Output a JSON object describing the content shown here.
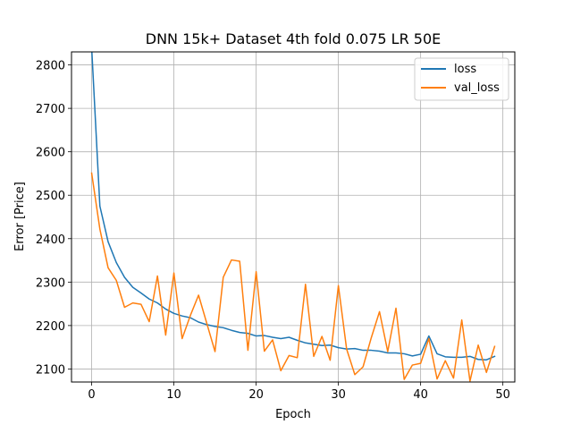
{
  "chart_data": {
    "type": "line",
    "title": "DNN 15k+ Dataset 4th fold 0.075 LR 50E",
    "xlabel": "Epoch",
    "ylabel": "Error [Price]",
    "xlim": [
      -2.45,
      51.45
    ],
    "ylim": [
      2070,
      2830
    ],
    "xticks": [
      0,
      10,
      20,
      30,
      40,
      50
    ],
    "yticks": [
      2100,
      2200,
      2300,
      2400,
      2500,
      2600,
      2700,
      2800
    ],
    "grid": true,
    "legend_position": "top-right",
    "x": [
      0,
      1,
      2,
      3,
      4,
      5,
      6,
      7,
      8,
      9,
      10,
      11,
      12,
      13,
      14,
      15,
      16,
      17,
      18,
      19,
      20,
      21,
      22,
      23,
      24,
      25,
      26,
      27,
      28,
      29,
      30,
      31,
      32,
      33,
      34,
      35,
      36,
      37,
      38,
      39,
      40,
      41,
      42,
      43,
      44,
      45,
      46,
      47,
      48,
      49
    ],
    "series": [
      {
        "name": "loss",
        "color": "#1f77b4",
        "values": [
          2840,
          2475,
          2393,
          2345,
          2311,
          2288,
          2275,
          2261,
          2252,
          2238,
          2228,
          2222,
          2218,
          2208,
          2202,
          2198,
          2195,
          2189,
          2184,
          2182,
          2176,
          2177,
          2173,
          2170,
          2173,
          2166,
          2160,
          2157,
          2154,
          2155,
          2149,
          2146,
          2147,
          2143,
          2143,
          2141,
          2137,
          2137,
          2135,
          2130,
          2134,
          2176,
          2135,
          2128,
          2127,
          2127,
          2129,
          2122,
          2121,
          2129
        ]
      },
      {
        "name": "val_loss",
        "color": "#ff7f0e",
        "values": [
          2551,
          2422,
          2333,
          2304,
          2242,
          2252,
          2249,
          2209,
          2314,
          2178,
          2321,
          2170,
          2223,
          2270,
          2205,
          2140,
          2311,
          2351,
          2348,
          2143,
          2324,
          2141,
          2167,
          2096,
          2131,
          2126,
          2295,
          2129,
          2175,
          2120,
          2292,
          2146,
          2087,
          2105,
          2172,
          2232,
          2140,
          2240,
          2076,
          2109,
          2113,
          2170,
          2077,
          2119,
          2079,
          2213,
          2072,
          2155,
          2092,
          2152
        ]
      }
    ]
  }
}
